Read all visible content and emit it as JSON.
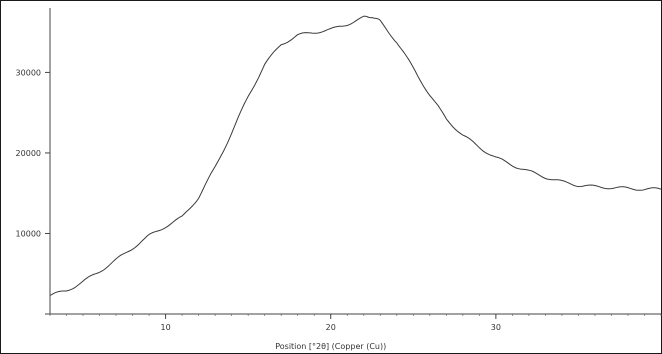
{
  "chart_data": {
    "type": "line",
    "title": "",
    "xlabel": "Position [°2θ] (Copper (Cu))",
    "ylabel": "",
    "xlim": [
      3,
      40
    ],
    "ylim": [
      0,
      38000
    ],
    "x_ticks": [
      "10",
      "20",
      "30"
    ],
    "y_ticks": [
      "10000",
      "20000",
      "30000"
    ],
    "grid": false,
    "legend": "none",
    "series": [
      {
        "color": "#3a3a3a",
        "x": [
          3,
          4,
          5,
          6,
          7,
          8,
          9,
          10,
          11,
          12,
          13,
          14,
          15,
          16,
          17,
          18,
          19,
          20,
          21,
          22,
          22.5,
          23,
          24,
          25,
          26,
          27,
          28,
          29,
          30,
          31,
          32,
          33,
          34,
          35,
          36,
          37,
          38,
          39,
          40
        ],
        "y": [
          2300,
          2900,
          4000,
          5300,
          6700,
          8200,
          9700,
          10900,
          12000,
          14500,
          18200,
          22500,
          27000,
          31000,
          33500,
          34600,
          35000,
          35300,
          36000,
          36800,
          37000,
          36300,
          33800,
          30500,
          27200,
          24200,
          22200,
          20700,
          19400,
          18500,
          17700,
          17000,
          16400,
          16000,
          15800,
          15700,
          15600,
          15500,
          15500
        ]
      }
    ]
  }
}
